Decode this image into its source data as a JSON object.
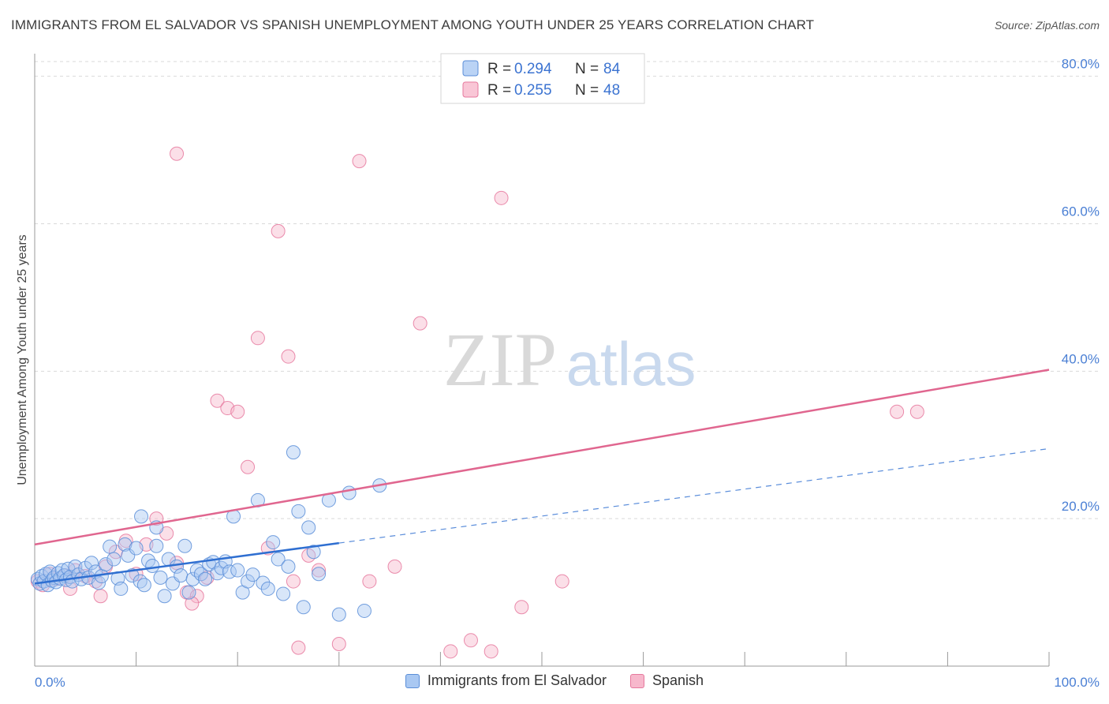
{
  "title": "IMMIGRANTS FROM EL SALVADOR VS SPANISH UNEMPLOYMENT AMONG YOUTH UNDER 25 YEARS CORRELATION CHART",
  "source": "Source: ZipAtlas.com",
  "watermark": {
    "zip": "ZIP",
    "atlas": "atlas"
  },
  "colors": {
    "blue_fill": "#a9c8f2",
    "blue_stroke": "#5b8ed8",
    "blue_line": "#2f6fd1",
    "pink_fill": "#f7b8cc",
    "pink_stroke": "#e6789d",
    "pink_line": "#e0668f",
    "grid": "#d9d9d9",
    "axis_label": "#4a7fd4"
  },
  "legend": {
    "rows": [
      {
        "r_label": "R =",
        "r_value": "0.294",
        "n_label": "N =",
        "n_value": "84"
      },
      {
        "r_label": "R =",
        "r_value": "0.255",
        "n_label": "N =",
        "n_value": "48"
      }
    ]
  },
  "bottom_legend": {
    "series1": "Immigrants from El Salvador",
    "series2": "Spanish"
  },
  "chart_data": {
    "type": "scatter",
    "title": "IMMIGRANTS FROM EL SALVADOR VS SPANISH UNEMPLOYMENT AMONG YOUTH UNDER 25 YEARS CORRELATION CHART",
    "xlabel": "",
    "ylabel": "Unemployment Among Youth under 25 years",
    "xlim": [
      0,
      100
    ],
    "ylim": [
      0,
      82
    ],
    "x_tick_labels": [
      "0.0%",
      "100.0%"
    ],
    "y_ticks": [
      20,
      40,
      60,
      80
    ],
    "y_tick_labels": [
      "20.0%",
      "40.0%",
      "60.0%",
      "80.0%"
    ],
    "series": [
      {
        "name": "Immigrants from El Salvador",
        "r": 0.294,
        "n": 84,
        "trend": {
          "x0": 0,
          "y0": 11.2,
          "x1": 100,
          "y1": 29.5,
          "solid_until": 30
        },
        "points": [
          [
            0.3,
            11.8
          ],
          [
            0.5,
            11.2
          ],
          [
            0.7,
            12.2
          ],
          [
            0.9,
            11.5
          ],
          [
            1.1,
            12.5
          ],
          [
            1.3,
            11.0
          ],
          [
            1.5,
            12.8
          ],
          [
            1.7,
            11.6
          ],
          [
            1.9,
            12.0
          ],
          [
            2.1,
            11.4
          ],
          [
            2.3,
            12.6
          ],
          [
            2.5,
            11.9
          ],
          [
            2.7,
            13.0
          ],
          [
            2.9,
            12.3
          ],
          [
            3.1,
            11.7
          ],
          [
            3.3,
            13.2
          ],
          [
            3.5,
            12.1
          ],
          [
            3.7,
            11.5
          ],
          [
            4.0,
            13.5
          ],
          [
            4.3,
            12.4
          ],
          [
            4.6,
            11.8
          ],
          [
            5.0,
            13.3
          ],
          [
            5.3,
            12.0
          ],
          [
            5.6,
            14.0
          ],
          [
            6.0,
            12.8
          ],
          [
            6.3,
            11.3
          ],
          [
            6.6,
            12.2
          ],
          [
            7.0,
            13.8
          ],
          [
            7.4,
            16.2
          ],
          [
            7.8,
            14.5
          ],
          [
            8.2,
            11.9
          ],
          [
            8.5,
            10.5
          ],
          [
            8.9,
            16.5
          ],
          [
            9.2,
            15.0
          ],
          [
            9.6,
            12.3
          ],
          [
            10.0,
            16.0
          ],
          [
            10.4,
            11.5
          ],
          [
            10.8,
            11.0
          ],
          [
            11.2,
            14.3
          ],
          [
            11.6,
            13.6
          ],
          [
            12.0,
            16.3
          ],
          [
            12.4,
            12.0
          ],
          [
            12.8,
            9.5
          ],
          [
            13.2,
            14.5
          ],
          [
            13.6,
            11.2
          ],
          [
            14.0,
            13.5
          ],
          [
            14.4,
            12.3
          ],
          [
            14.8,
            16.3
          ],
          [
            15.2,
            10.0
          ],
          [
            15.6,
            11.8
          ],
          [
            16.0,
            13.0
          ],
          [
            16.4,
            12.5
          ],
          [
            16.8,
            11.8
          ],
          [
            17.2,
            13.8
          ],
          [
            17.6,
            14.1
          ],
          [
            18.0,
            12.6
          ],
          [
            18.4,
            13.3
          ],
          [
            18.8,
            14.2
          ],
          [
            19.2,
            12.8
          ],
          [
            19.6,
            20.3
          ],
          [
            20.0,
            13.0
          ],
          [
            20.5,
            10.0
          ],
          [
            21.0,
            11.5
          ],
          [
            21.5,
            12.4
          ],
          [
            22.0,
            22.5
          ],
          [
            22.5,
            11.3
          ],
          [
            23.0,
            10.5
          ],
          [
            23.5,
            16.8
          ],
          [
            24.0,
            14.5
          ],
          [
            24.5,
            9.8
          ],
          [
            25.0,
            13.5
          ],
          [
            25.5,
            29.0
          ],
          [
            26.0,
            21.0
          ],
          [
            26.5,
            8.0
          ],
          [
            27.0,
            18.8
          ],
          [
            27.5,
            15.5
          ],
          [
            28.0,
            12.5
          ],
          [
            29.0,
            22.5
          ],
          [
            30.0,
            7.0
          ],
          [
            31.0,
            23.5
          ],
          [
            32.5,
            7.5
          ],
          [
            34.0,
            24.5
          ],
          [
            12.0,
            18.8
          ],
          [
            10.5,
            20.3
          ]
        ]
      },
      {
        "name": "Spanish",
        "r": 0.255,
        "n": 48,
        "trend": {
          "x0": 0,
          "y0": 16.5,
          "x1": 100,
          "y1": 40.2
        },
        "points": [
          [
            0.3,
            11.5
          ],
          [
            0.8,
            11.0
          ],
          [
            1.5,
            12.5
          ],
          [
            2.0,
            11.8
          ],
          [
            3.0,
            12.3
          ],
          [
            4.0,
            13.0
          ],
          [
            5.0,
            12.2
          ],
          [
            6.0,
            11.5
          ],
          [
            7.0,
            13.5
          ],
          [
            8.0,
            15.5
          ],
          [
            9.0,
            17.0
          ],
          [
            10.0,
            12.5
          ],
          [
            11.0,
            16.5
          ],
          [
            12.0,
            20.0
          ],
          [
            13.0,
            18.0
          ],
          [
            14.0,
            14.0
          ],
          [
            15.0,
            10.0
          ],
          [
            16.0,
            9.5
          ],
          [
            17.0,
            12.0
          ],
          [
            18.0,
            36.0
          ],
          [
            19.0,
            35.0
          ],
          [
            20.0,
            34.5
          ],
          [
            21.0,
            27.0
          ],
          [
            22.0,
            44.5
          ],
          [
            23.0,
            16.0
          ],
          [
            24.0,
            59.0
          ],
          [
            25.0,
            42.0
          ],
          [
            25.5,
            11.5
          ],
          [
            26.0,
            2.5
          ],
          [
            27.0,
            15.0
          ],
          [
            28.0,
            13.0
          ],
          [
            30.0,
            3.0
          ],
          [
            32.0,
            68.5
          ],
          [
            33.0,
            11.5
          ],
          [
            35.5,
            13.5
          ],
          [
            38.0,
            46.5
          ],
          [
            41.0,
            2.0
          ],
          [
            43.0,
            3.5
          ],
          [
            45.0,
            2.0
          ],
          [
            46.0,
            63.5
          ],
          [
            48.0,
            8.0
          ],
          [
            52.0,
            11.5
          ],
          [
            85.0,
            34.5
          ],
          [
            87.0,
            34.5
          ],
          [
            14.0,
            69.5
          ],
          [
            15.5,
            8.5
          ],
          [
            3.5,
            10.5
          ],
          [
            6.5,
            9.5
          ]
        ]
      }
    ]
  }
}
